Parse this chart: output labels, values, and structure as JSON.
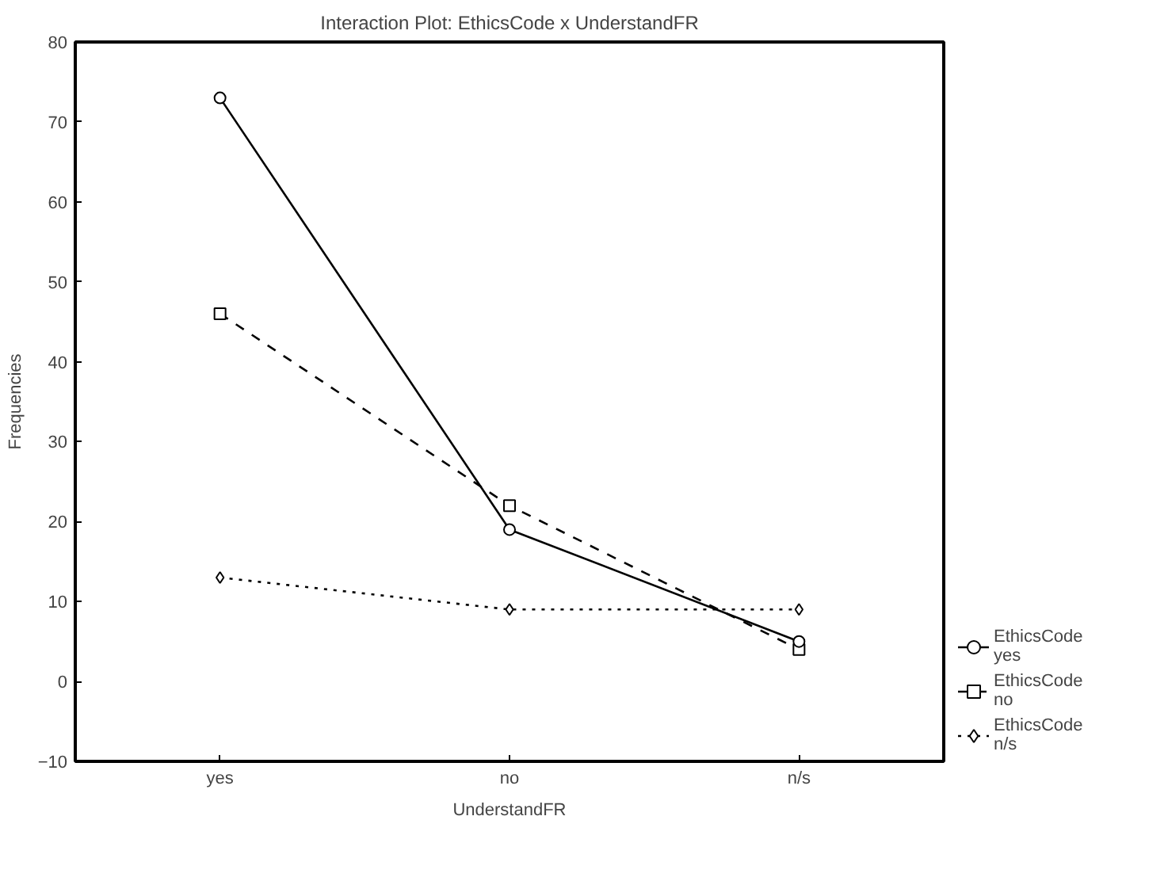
{
  "chart_data": {
    "type": "line",
    "title": "Interaction Plot: EthicsCode x UnderstandFR",
    "xlabel": "UnderstandFR",
    "ylabel": "Frequencies",
    "categories": [
      "yes",
      "no",
      "n/s"
    ],
    "series": [
      {
        "name": "EthicsCode yes",
        "color": "#000000",
        "values": [
          73,
          19,
          5
        ],
        "marker": "circle",
        "line_style": "solid"
      },
      {
        "name": "EthicsCode no",
        "color": "#000000",
        "values": [
          46,
          22,
          4
        ],
        "marker": "square",
        "line_style": "dashed"
      },
      {
        "name": "EthicsCode n/s",
        "color": "#000000",
        "values": [
          13,
          9,
          9
        ],
        "marker": "diamond",
        "line_style": "dotted"
      }
    ],
    "ylim": [
      -10,
      80
    ],
    "yticks": [
      -10,
      0,
      10,
      20,
      30,
      40,
      50,
      60,
      70,
      80
    ],
    "grid": false,
    "legend": "bottom right"
  }
}
